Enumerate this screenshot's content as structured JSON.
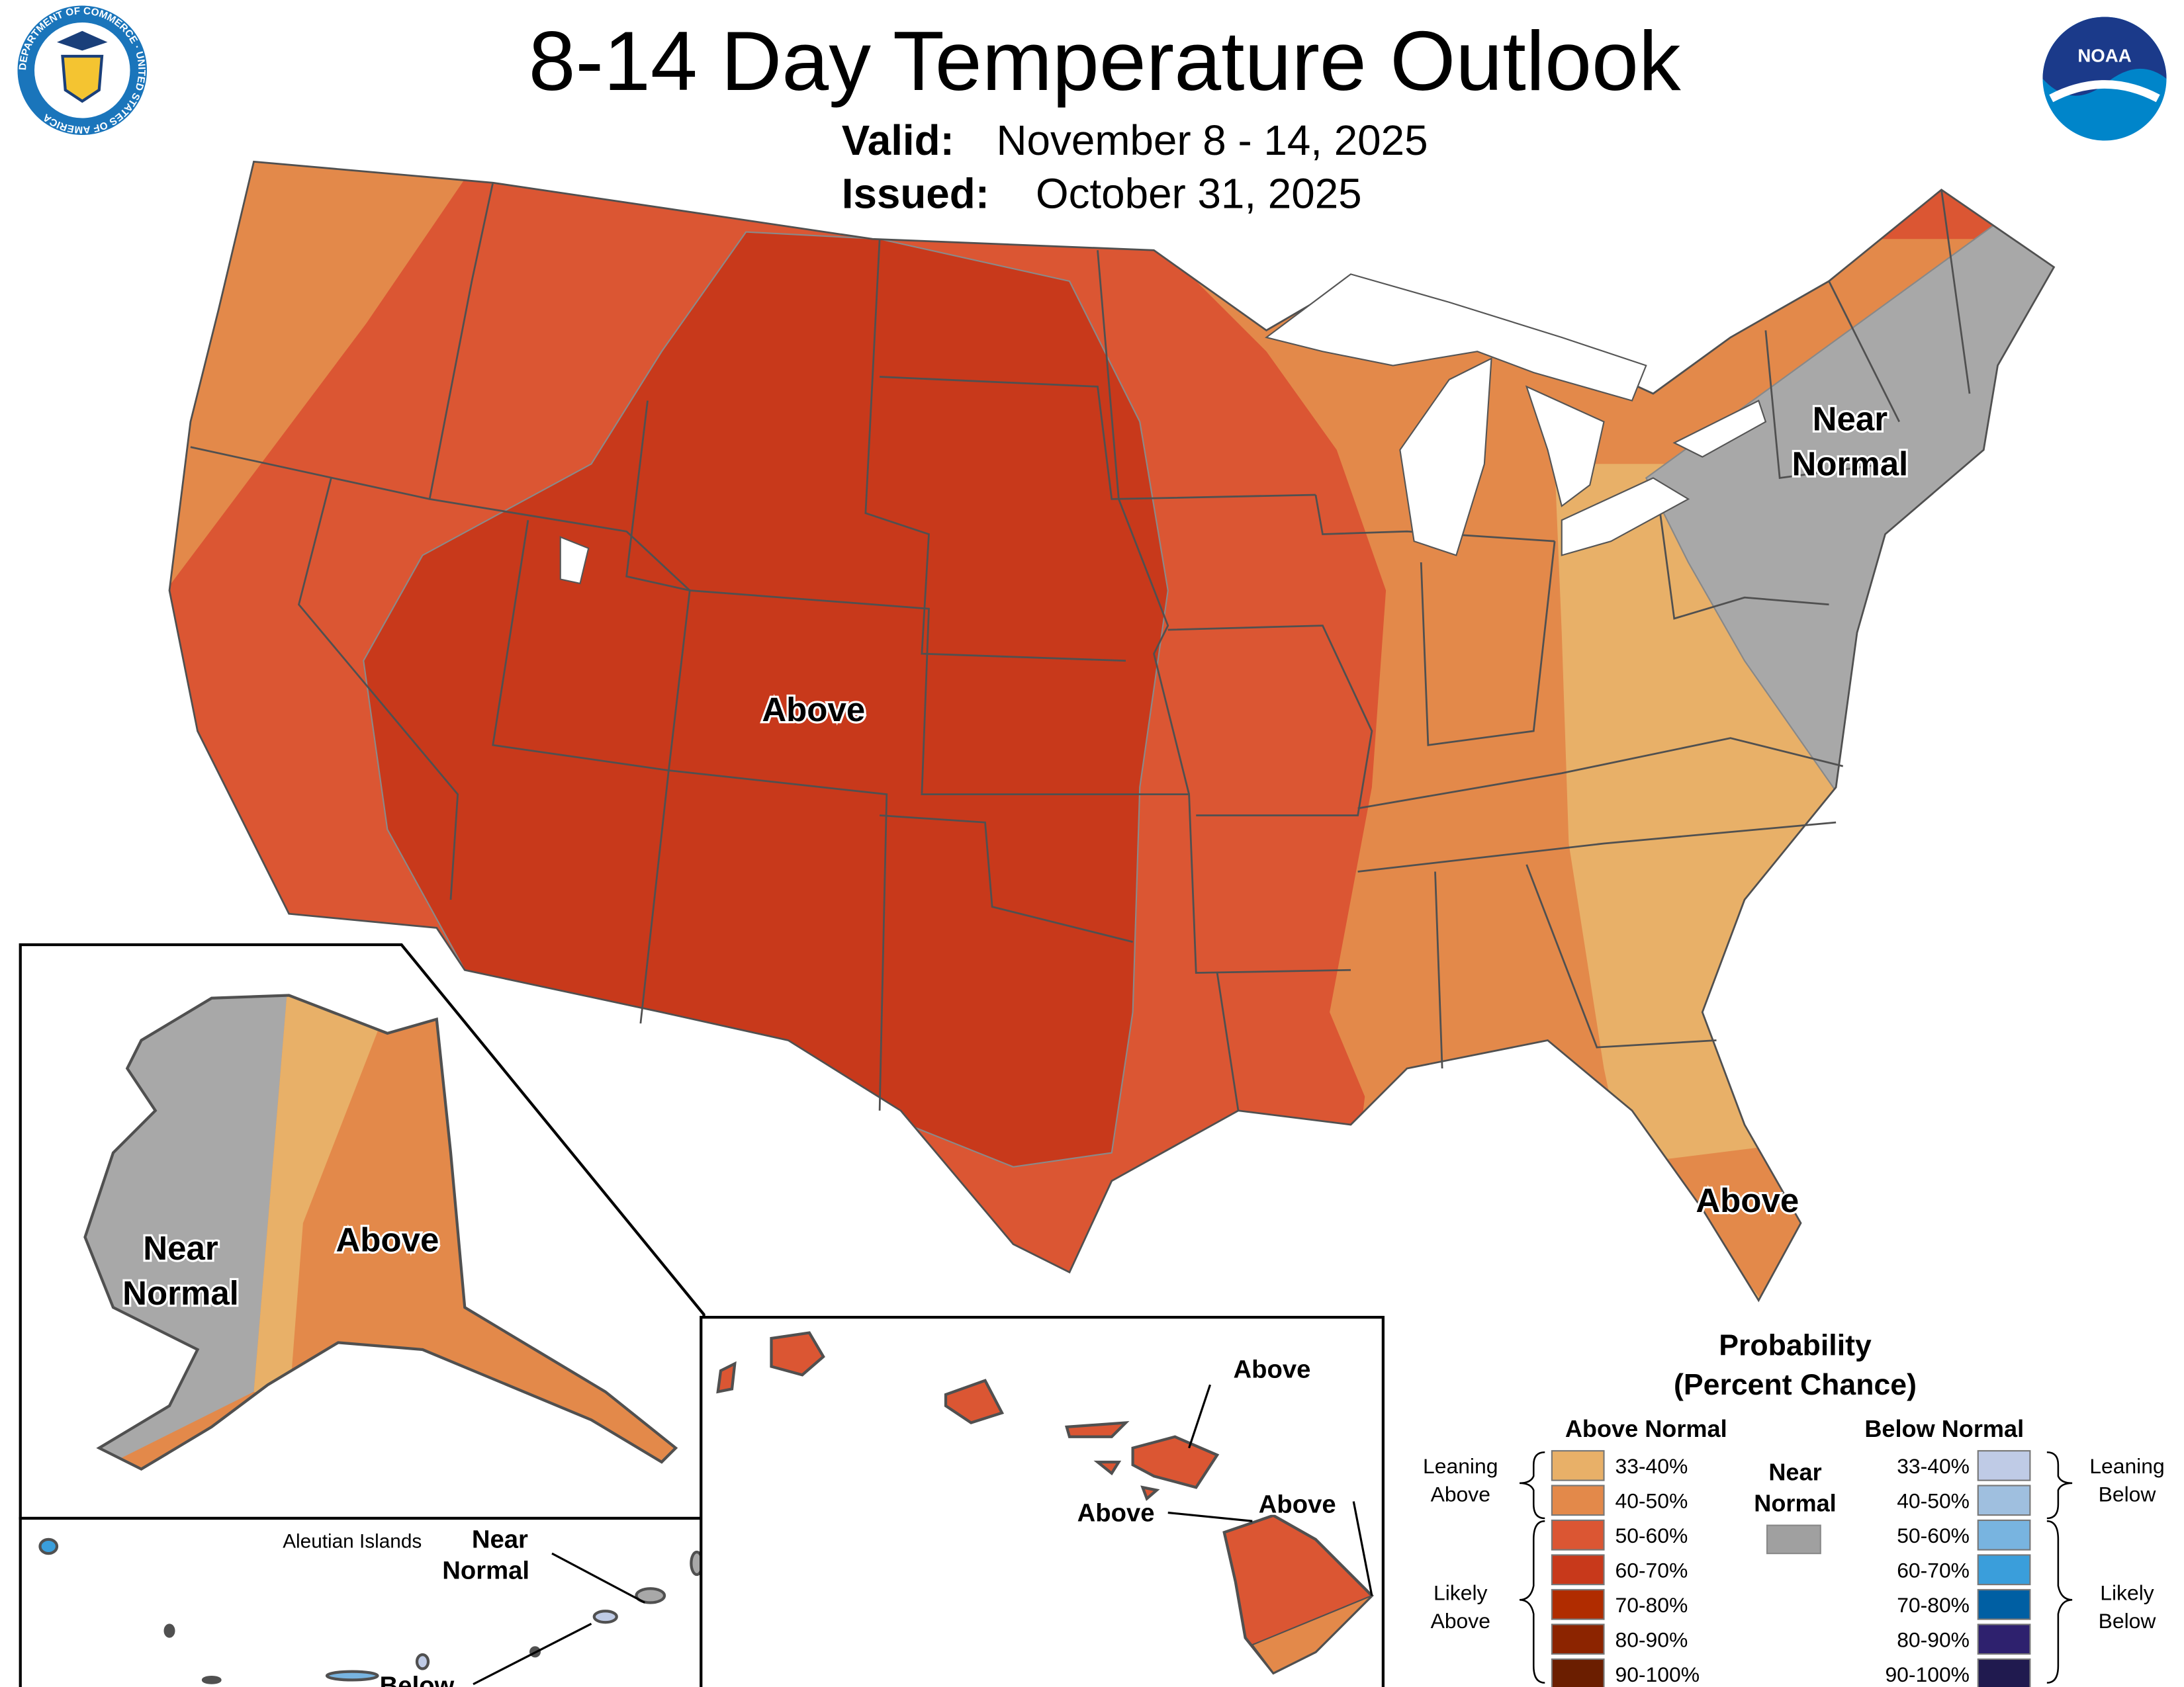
{
  "header": {
    "title": "8-14 Day Temperature Outlook",
    "valid_label": "Valid:",
    "valid_value": "November 8 - 14, 2025",
    "issued_label": "Issued:",
    "issued_value": "October 31, 2025",
    "left_logo": "department-of-commerce-seal",
    "left_logo_text": "DEPARTMENT OF COMMERCE · UNITED STATES OF AMERICA",
    "right_logo": "noaa-logo",
    "right_logo_text": "NOAA"
  },
  "map_labels": {
    "conus_above": "Above",
    "northeast_near_line1": "Near",
    "northeast_near_line2": "Normal",
    "florida_above": "Above",
    "alaska_near_line1": "Near",
    "alaska_near_line2": "Normal",
    "alaska_above": "Above",
    "aleutian_title": "Aleutian Islands",
    "aleutian_near_line1": "Near",
    "aleutian_near_line2": "Normal",
    "aleutian_below": "Below",
    "hawaii_above_1": "Above",
    "hawaii_above_2": "Above",
    "hawaii_above_3": "Above"
  },
  "legend": {
    "title_line1": "Probability",
    "title_line2": "(Percent Chance)",
    "above_header": "Above Normal",
    "below_header": "Below Normal",
    "near_line1": "Near",
    "near_line2": "Normal",
    "near_color": "#a0a0a0",
    "leaning_above_1": "Leaning",
    "leaning_above_2": "Above",
    "likely_above_1": "Likely",
    "likely_above_2": "Above",
    "leaning_below_1": "Leaning",
    "leaning_below_2": "Below",
    "likely_below_1": "Likely",
    "likely_below_2": "Below",
    "above": [
      {
        "range": "33-40%",
        "color": "#e8b068"
      },
      {
        "range": "40-50%",
        "color": "#e3894a"
      },
      {
        "range": "50-60%",
        "color": "#db5633"
      },
      {
        "range": "60-70%",
        "color": "#c8391b"
      },
      {
        "range": "70-80%",
        "color": "#b02c00"
      },
      {
        "range": "80-90%",
        "color": "#8c2400"
      },
      {
        "range": "90-100%",
        "color": "#6b1e00"
      }
    ],
    "below": [
      {
        "range": "33-40%",
        "color": "#bfcbe6"
      },
      {
        "range": "40-50%",
        "color": "#9fbfdf"
      },
      {
        "range": "50-60%",
        "color": "#78b4e0"
      },
      {
        "range": "60-70%",
        "color": "#3a9edb"
      },
      {
        "range": "70-80%",
        "color": "#005fa3"
      },
      {
        "range": "80-90%",
        "color": "#2e216e"
      },
      {
        "range": "90-100%",
        "color": "#201a4f"
      }
    ]
  }
}
